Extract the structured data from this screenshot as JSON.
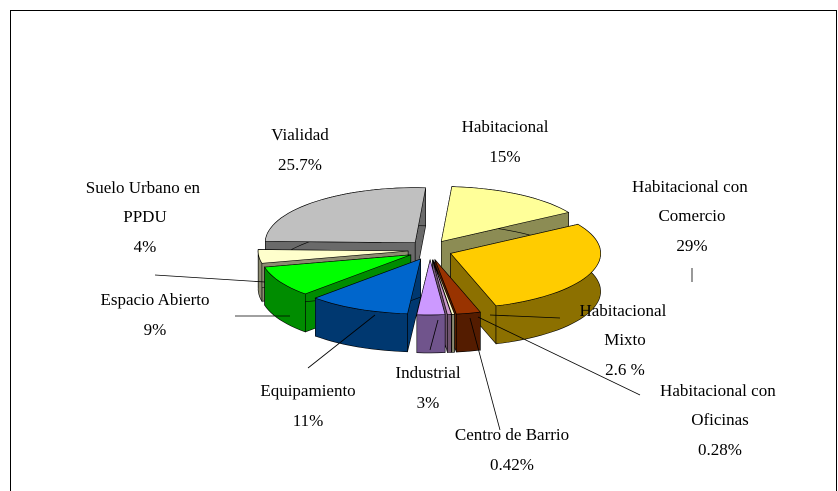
{
  "chart_data": {
    "type": "pie3d",
    "categories": [
      "Habitacional",
      "Habitacional con Comercio",
      "Habitacional Mixto",
      "Habitacional con Oficinas",
      "Centro de Barrio",
      "Industrial",
      "Equipamiento",
      "Espacio Abierto",
      "Suelo Urbano en PPDU",
      "Vialidad"
    ],
    "values": [
      15,
      29,
      2.6,
      0.28,
      0.42,
      3,
      11,
      9,
      4,
      25.7
    ],
    "value_labels": [
      "15%",
      "29%",
      "2.6 %",
      "0.28%",
      "0.42%",
      "3%",
      "11%",
      "9%",
      "4%",
      "25.7%"
    ],
    "colors": [
      "#ffff99",
      "#ffcc00",
      "#993300",
      "#ffffcc",
      "#cc99cc",
      "#cc99ff",
      "#0066cc",
      "#00ff00",
      "#ffffcc",
      "#c0c0c0"
    ]
  }
}
